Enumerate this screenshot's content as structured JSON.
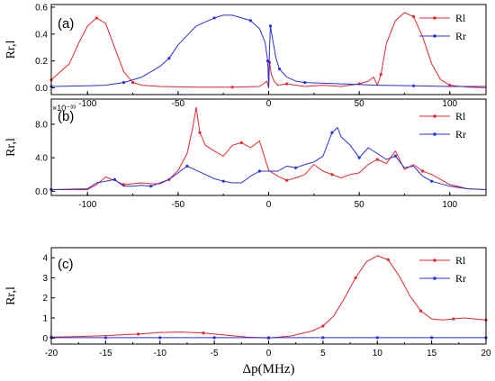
{
  "chart_data": [
    {
      "type": "line",
      "panel_label": "(a)",
      "ylabel": "Rr,l",
      "xlim": [
        -120,
        120
      ],
      "ylim": [
        -0.05,
        0.62
      ],
      "xticks": [
        -100,
        -50,
        0,
        50,
        100
      ],
      "xtick_labels": [
        "-100",
        "-50",
        "0",
        "50",
        "100"
      ],
      "yticks": [
        0.0,
        0.2,
        0.4,
        0.6
      ],
      "ytick_labels": [
        "0.0",
        "0.2",
        "0.4",
        "0.6"
      ],
      "legend_position": "top-right",
      "series": [
        {
          "name": "Rl",
          "color": "#e8262b",
          "x": [
            -120,
            -110,
            -105,
            -100,
            -95,
            -90,
            -85,
            -80,
            -75,
            -70,
            -60,
            -40,
            -20,
            -5,
            -1,
            0,
            0.5,
            1.5,
            3,
            5,
            10,
            20,
            30,
            40,
            50,
            55,
            58,
            60,
            62,
            65,
            70,
            75,
            80,
            85,
            90,
            95,
            100,
            110,
            120
          ],
          "y": [
            0.06,
            0.18,
            0.33,
            0.46,
            0.52,
            0.48,
            0.3,
            0.12,
            0.04,
            0.02,
            0.01,
            0.005,
            0.005,
            0.01,
            0.05,
            0.0,
            0.19,
            0.1,
            0.05,
            0.02,
            0.03,
            0.01,
            0.02,
            0.01,
            0.03,
            0.05,
            0.08,
            0.02,
            0.1,
            0.33,
            0.5,
            0.56,
            0.53,
            0.38,
            0.18,
            0.06,
            0.02,
            0.005,
            0.0
          ]
        },
        {
          "name": "Rr",
          "color": "#2a2fe0",
          "x": [
            -120,
            -100,
            -90,
            -80,
            -70,
            -60,
            -55,
            -50,
            -40,
            -30,
            -25,
            -20,
            -10,
            -5,
            -2,
            -0.5,
            0,
            0.5,
            1,
            2,
            4,
            6,
            10,
            15,
            20,
            40,
            60,
            80,
            100,
            120
          ],
          "y": [
            0.01,
            0.015,
            0.02,
            0.04,
            0.08,
            0.16,
            0.22,
            0.32,
            0.46,
            0.52,
            0.54,
            0.54,
            0.5,
            0.44,
            0.34,
            0.2,
            0.0,
            0.3,
            0.46,
            0.38,
            0.22,
            0.14,
            0.08,
            0.05,
            0.04,
            0.03,
            0.02,
            0.015,
            0.01,
            0.01
          ]
        }
      ]
    },
    {
      "type": "line",
      "panel_label": "(b)",
      "ylabel": "Rr,l",
      "multiplier": "×10⁻³³",
      "xlim": [
        -120,
        120
      ],
      "ylim": [
        -0.5,
        11
      ],
      "xticks": [
        -100,
        -50,
        0,
        50,
        100
      ],
      "xtick_labels": [
        "-100",
        "-50",
        "0",
        "50",
        "100"
      ],
      "yticks": [
        0.0,
        4.0,
        8.0
      ],
      "ytick_labels": [
        "0.0",
        "4.0",
        "8.0"
      ],
      "legend_position": "top-right",
      "series": [
        {
          "name": "Rl",
          "color": "#e8262b",
          "x": [
            -120,
            -100,
            -95,
            -90,
            -85,
            -80,
            -75,
            -70,
            -65,
            -60,
            -55,
            -50,
            -45,
            -42,
            -40,
            -38,
            -35,
            -30,
            -25,
            -20,
            -15,
            -10,
            -5,
            0,
            5,
            10,
            15,
            20,
            25,
            30,
            35,
            40,
            45,
            50,
            55,
            60,
            65,
            70,
            75,
            80,
            85,
            90,
            100,
            110,
            120
          ],
          "y": [
            0.2,
            0.2,
            0.8,
            1.7,
            1.3,
            0.8,
            0.9,
            1.0,
            0.9,
            0.9,
            1.4,
            2.5,
            4.5,
            7.5,
            10.0,
            7.0,
            5.5,
            4.8,
            4.2,
            5.5,
            5.8,
            5.2,
            6.0,
            2.5,
            1.8,
            1.3,
            1.6,
            2.0,
            3.2,
            2.4,
            2.0,
            1.6,
            2.0,
            2.2,
            3.2,
            3.8,
            3.3,
            4.8,
            2.6,
            3.2,
            2.4,
            2.0,
            0.8,
            0.3,
            0.2
          ]
        },
        {
          "name": "Rr",
          "color": "#2a2fe0",
          "x": [
            -120,
            -100,
            -95,
            -90,
            -85,
            -80,
            -75,
            -70,
            -65,
            -60,
            -55,
            -50,
            -45,
            -40,
            -35,
            -30,
            -25,
            -20,
            -15,
            -10,
            -5,
            0,
            5,
            10,
            15,
            20,
            25,
            30,
            35,
            38,
            40,
            45,
            50,
            55,
            60,
            65,
            70,
            75,
            80,
            85,
            90,
            100,
            110,
            120
          ],
          "y": [
            0.2,
            0.3,
            1.0,
            1.2,
            1.4,
            0.6,
            0.6,
            0.7,
            0.6,
            1.0,
            1.4,
            2.2,
            3.0,
            2.5,
            2.0,
            1.5,
            1.2,
            1.0,
            1.0,
            1.8,
            2.4,
            2.4,
            2.4,
            3.0,
            2.8,
            3.2,
            3.5,
            4.2,
            7.0,
            7.6,
            6.5,
            5.5,
            4.0,
            5.2,
            4.5,
            3.8,
            4.2,
            2.8,
            3.0,
            1.8,
            1.2,
            0.6,
            0.3,
            0.2
          ]
        }
      ]
    },
    {
      "type": "line",
      "panel_label": "(c)",
      "ylabel": "Rr,l",
      "xlabel": "Δp(MHz)",
      "xlim": [
        -20,
        20
      ],
      "ylim": [
        -0.3,
        4.5
      ],
      "xticks": [
        -20,
        -15,
        -10,
        -5,
        0,
        5,
        10,
        15,
        20
      ],
      "xtick_labels": [
        "-20",
        "-15",
        "-10",
        "-5",
        "0",
        "5",
        "10",
        "15",
        "20"
      ],
      "yticks": [
        0,
        1,
        2,
        3,
        4
      ],
      "ytick_labels": [
        "0",
        "1",
        "2",
        "3",
        "4"
      ],
      "legend_position": "top-right",
      "series": [
        {
          "name": "Rl",
          "color": "#e8262b",
          "x": [
            -20,
            -17,
            -15,
            -12,
            -10,
            -8,
            -6,
            -4,
            -2,
            0,
            2,
            4,
            5,
            6,
            7,
            8,
            9,
            10,
            11,
            12,
            13,
            14,
            15,
            16,
            17,
            18,
            19,
            20
          ],
          "y": [
            0.05,
            0.08,
            0.12,
            0.2,
            0.28,
            0.3,
            0.25,
            0.15,
            0.05,
            0.0,
            0.1,
            0.35,
            0.6,
            1.1,
            2.0,
            3.0,
            3.8,
            4.1,
            3.9,
            3.1,
            2.1,
            1.35,
            0.95,
            0.9,
            0.95,
            1.0,
            0.95,
            0.9
          ]
        },
        {
          "name": "Rr",
          "color": "#2a2fe0",
          "x": [
            -20,
            -15,
            -10,
            -5,
            0,
            5,
            10,
            15,
            20
          ],
          "y": [
            0.02,
            0.02,
            0.02,
            0.02,
            0.02,
            0.02,
            0.02,
            0.02,
            0.02
          ]
        }
      ]
    }
  ]
}
